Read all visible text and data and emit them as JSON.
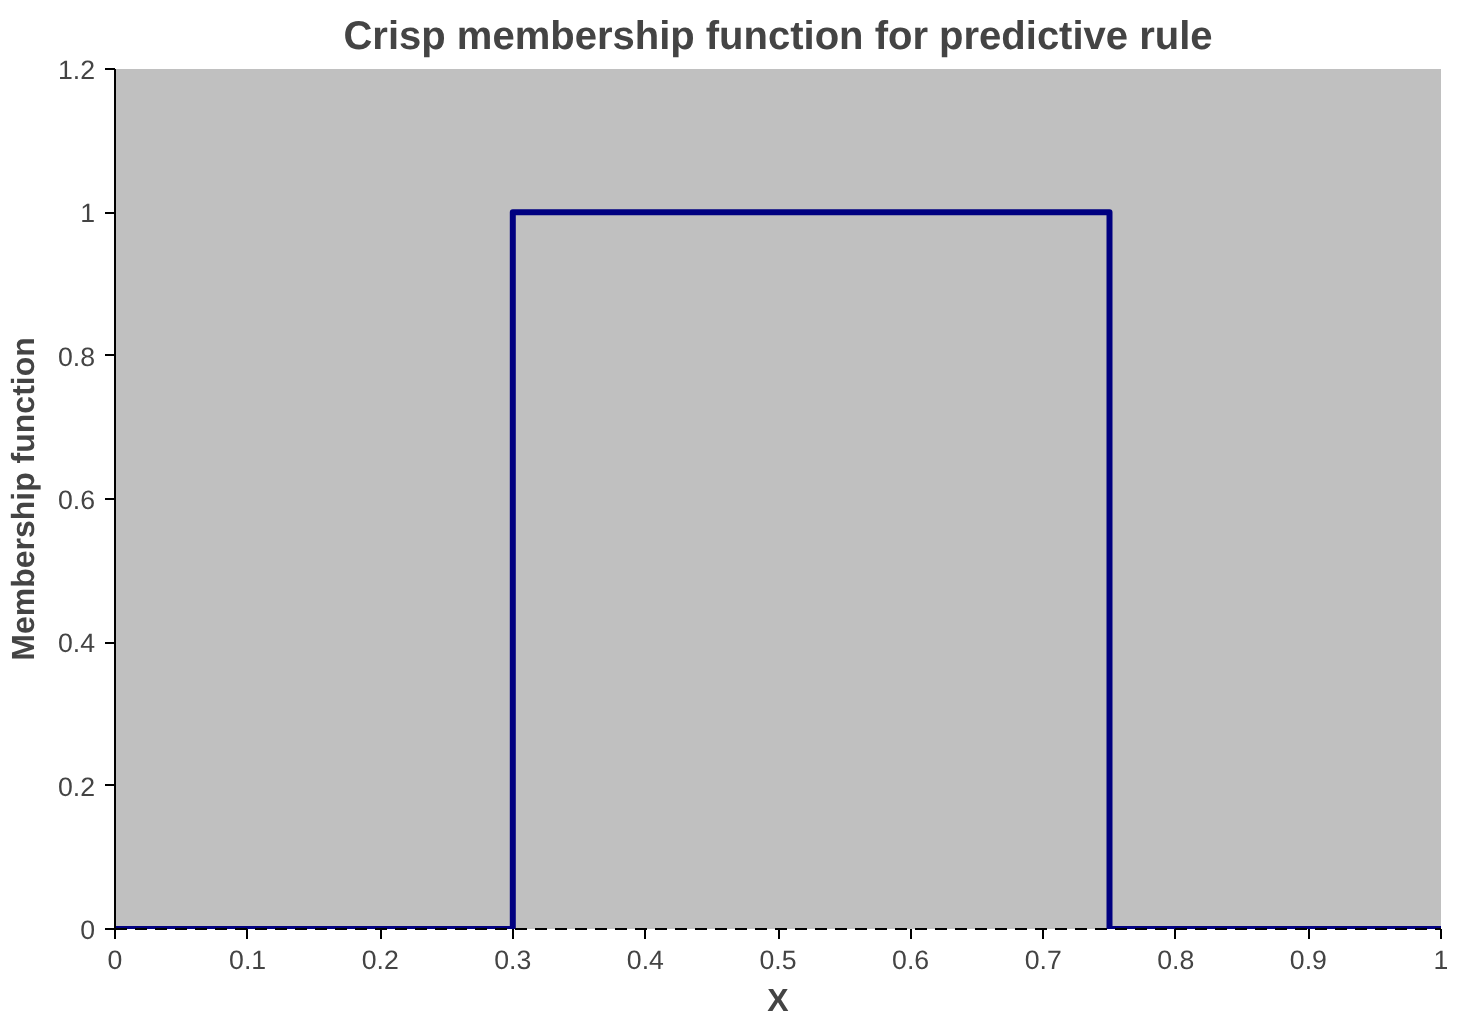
{
  "chart_data": {
    "type": "line",
    "title": "Crisp membership function for predictive rule",
    "xlabel": "X",
    "ylabel": "Membership function",
    "xlim": [
      0,
      1
    ],
    "xticks": [
      0,
      0.1,
      0.2,
      0.3,
      0.4,
      0.5,
      0.6,
      0.7,
      0.8,
      0.9,
      1
    ],
    "ylim": [
      0,
      1.2
    ],
    "yticks": [
      0,
      0.2,
      0.4,
      0.6,
      0.8,
      1,
      1.2
    ],
    "grid": false,
    "marker": "none",
    "series": [
      {
        "x": [
          0,
          0.3,
          0.3,
          0.75,
          0.75,
          1
        ],
        "values": [
          0,
          0,
          1,
          1,
          0,
          0
        ],
        "color": "#000080",
        "line_style": "solid"
      }
    ]
  }
}
